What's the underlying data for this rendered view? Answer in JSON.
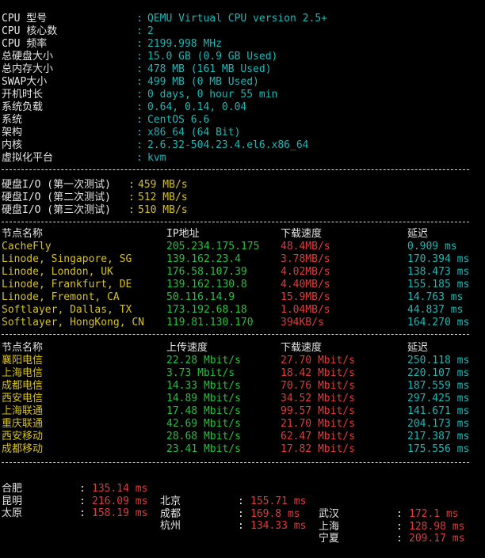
{
  "sysinfo": [
    {
      "label": "CPU 型号",
      "colon": ":",
      "value": "QEMU Virtual CPU version 2.5+"
    },
    {
      "label": "CPU 核心数",
      "colon": ":",
      "value": "2"
    },
    {
      "label": "CPU 频率",
      "colon": ":",
      "value": "2199.998 MHz"
    },
    {
      "label": "总硬盘大小",
      "colon": ":",
      "value": "15.0 GB (0.9 GB Used)"
    },
    {
      "label": "总内存大小",
      "colon": ":",
      "value": "478 MB (161 MB Used)"
    },
    {
      "label": "SWAP大小",
      "colon": ":",
      "value": "499 MB (0 MB Used)"
    },
    {
      "label": "开机时长",
      "colon": ":",
      "value": "0 days, 0 hour 55 min"
    },
    {
      "label": "系统负载",
      "colon": ":",
      "value": "0.64, 0.14, 0.04"
    },
    {
      "label": "系统",
      "colon": ":",
      "value": "CentOS 6.6"
    },
    {
      "label": "架构",
      "colon": ":",
      "value": "x86_64 (64 Bit)"
    },
    {
      "label": "内核",
      "colon": ":",
      "value": "2.6.32-504.23.4.el6.x86_64"
    },
    {
      "label": "虚拟化平台",
      "colon": ":",
      "value": "kvm"
    }
  ],
  "io": [
    {
      "label": "硬盘I/O (第一次测试)",
      "colon": ":",
      "value": "459 MB/s"
    },
    {
      "label": "硬盘I/O (第二次测试)",
      "colon": ":",
      "value": "512 MB/s"
    },
    {
      "label": "硬盘I/O (第三次测试)",
      "colon": ":",
      "value": "510 MB/s"
    }
  ],
  "intl": {
    "headers": [
      "节点名称",
      "IP地址",
      "下载速度",
      "延迟"
    ],
    "rows": [
      {
        "node": "CacheFly",
        "ip": "205.234.175.175",
        "speed": "48.4MB/s",
        "latency": "0.909 ms"
      },
      {
        "node": "Linode, Singapore, SG",
        "ip": "139.162.23.4",
        "speed": "3.78MB/s",
        "latency": "170.394 ms"
      },
      {
        "node": "Linode, London, UK",
        "ip": "176.58.107.39",
        "speed": "4.02MB/s",
        "latency": "138.473 ms"
      },
      {
        "node": "Linode, Frankfurt, DE",
        "ip": "139.162.130.8",
        "speed": "4.40MB/s",
        "latency": "155.185 ms"
      },
      {
        "node": "Linode, Fremont, CA",
        "ip": "50.116.14.9",
        "speed": "15.9MB/s",
        "latency": "14.763 ms"
      },
      {
        "node": "Softlayer, Dallas, TX",
        "ip": "173.192.68.18",
        "speed": "1.04MB/s",
        "latency": "44.837 ms"
      },
      {
        "node": "Softlayer, HongKong, CN",
        "ip": "119.81.130.170",
        "speed": "394KB/s",
        "latency": "164.270 ms"
      }
    ]
  },
  "cn": {
    "headers": [
      "节点名称",
      "上传速度",
      "下载速度",
      "延迟"
    ],
    "rows": [
      {
        "node": "襄阳电信",
        "up": "22.28 Mbit/s",
        "down": "27.70 Mbit/s",
        "latency": "250.118 ms"
      },
      {
        "node": "上海电信",
        "up": "3.73 Mbit/s",
        "down": "18.42 Mbit/s",
        "latency": "220.107 ms"
      },
      {
        "node": "成都电信",
        "up": "14.33 Mbit/s",
        "down": "70.76 Mbit/s",
        "latency": "187.559 ms"
      },
      {
        "node": "西安电信",
        "up": "14.89 Mbit/s",
        "down": "34.52 Mbit/s",
        "latency": "297.425 ms"
      },
      {
        "node": "上海联通",
        "up": "17.48 Mbit/s",
        "down": "99.57 Mbit/s",
        "latency": "141.671 ms"
      },
      {
        "node": "重庆联通",
        "up": "42.69 Mbit/s",
        "down": "21.70 Mbit/s",
        "latency": "204.173 ms"
      },
      {
        "node": "西安移动",
        "up": "28.68 Mbit/s",
        "down": "62.47 Mbit/s",
        "latency": "217.387 ms"
      },
      {
        "node": "成都移动",
        "up": "23.41 Mbit/s",
        "down": "17.82 Mbit/s",
        "latency": "175.556 ms"
      }
    ]
  },
  "ping": [
    [
      {
        "city": "合肥",
        "colon": ":",
        "ms": "135.14 ms"
      },
      {
        "city": "北京",
        "colon": ":",
        "ms": "155.71 ms"
      },
      {
        "city": "武汉",
        "colon": ":",
        "ms": "172.1 ms"
      }
    ],
    [
      {
        "city": "昆明",
        "colon": ":",
        "ms": "216.09 ms"
      },
      {
        "city": "成都",
        "colon": ":",
        "ms": "169.8 ms"
      },
      {
        "city": "上海",
        "colon": ":",
        "ms": "128.98 ms"
      }
    ],
    [
      {
        "city": "太原",
        "colon": ":",
        "ms": "158.19 ms"
      },
      {
        "city": "杭州",
        "colon": ":",
        "ms": "134.33 ms"
      },
      {
        "city": "宁夏",
        "colon": ":",
        "ms": "209.17 ms"
      }
    ]
  ]
}
